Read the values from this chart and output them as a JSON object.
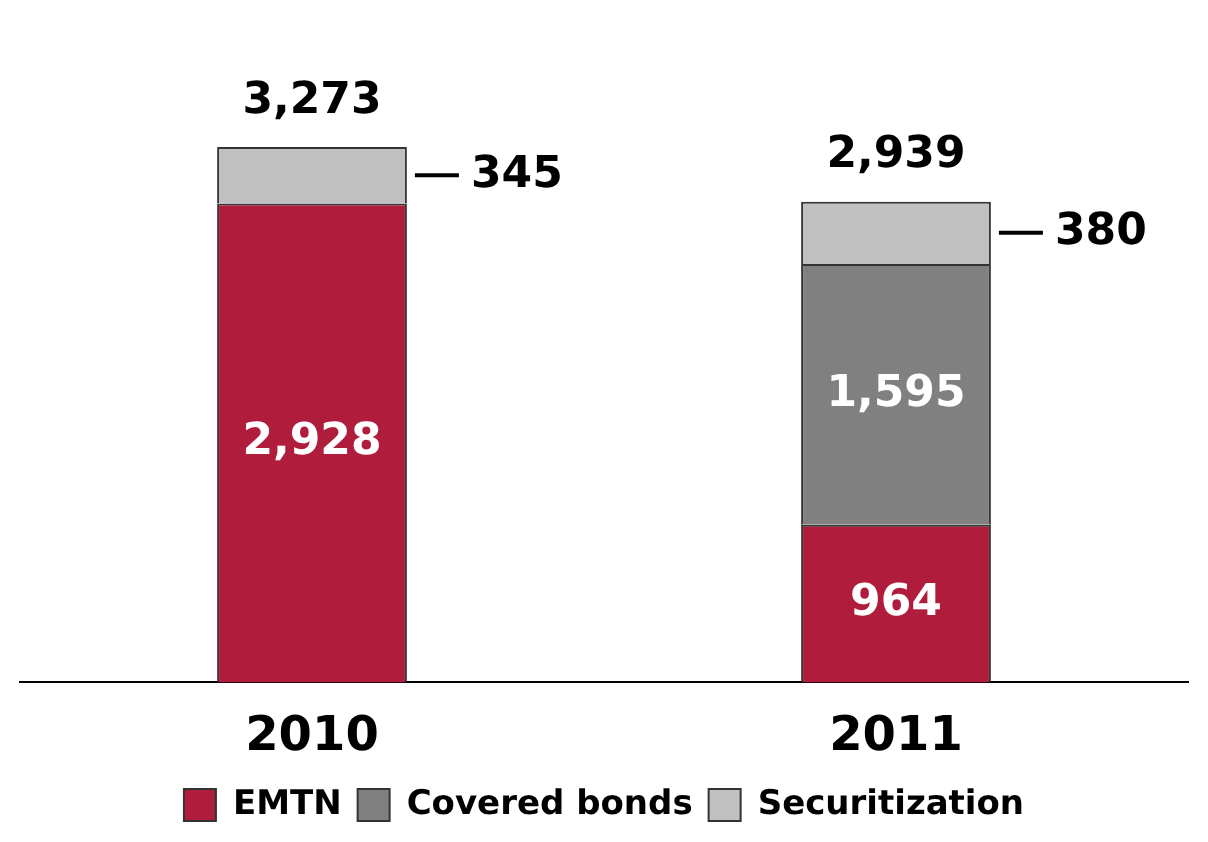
{
  "chart_data": {
    "type": "bar",
    "stacked": true,
    "categories": [
      "2010",
      "2011"
    ],
    "series": [
      {
        "name": "EMTN",
        "color": "#b01c3c",
        "values": [
          2928,
          964
        ],
        "value_labels": [
          "2,928",
          "964"
        ]
      },
      {
        "name": "Covered bonds",
        "color": "#808080",
        "values": [
          0,
          1595
        ],
        "value_labels": [
          null,
          "1,595"
        ]
      },
      {
        "name": "Securitization",
        "color": "#c0c0c0",
        "values": [
          345,
          380
        ],
        "value_labels": [
          "345",
          "380"
        ]
      }
    ],
    "totals": [
      "3,273",
      "2,939"
    ],
    "legend": "bottom",
    "tick_labels": "x",
    "grid": false
  }
}
